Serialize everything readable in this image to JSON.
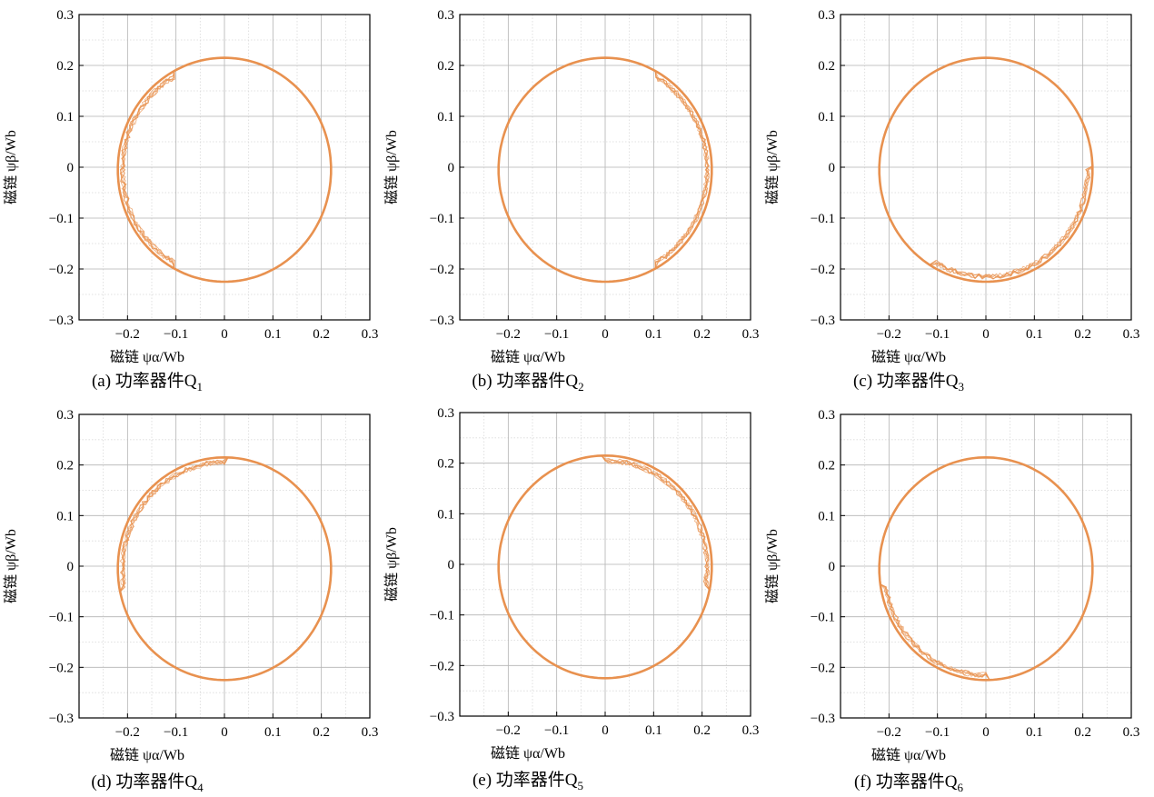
{
  "chart_data": [
    {
      "type": "line",
      "caption": "(a) 功率器件Q",
      "caption_sub": "1",
      "xlabel": "磁链 ψα/Wb",
      "ylabel": "磁链 ψβ/Wb",
      "xlim": [
        -0.3,
        0.3
      ],
      "ylim": [
        -0.3,
        0.3
      ],
      "xticks": [
        -0.2,
        -0.1,
        0,
        0.1,
        0.2,
        0.3
      ],
      "xtick_labels": [
        "−0.2",
        "−0.1",
        "0",
        "0.1",
        "0.2",
        "0.3"
      ],
      "yticks": [
        -0.3,
        -0.2,
        -0.1,
        0,
        0.1,
        0.2,
        0.3
      ],
      "ytick_labels": [
        "−0.3",
        "−0.2",
        "−0.1",
        "0",
        "0.1",
        "0.2",
        "0.3"
      ],
      "grid": true,
      "line_color": "#e8914f",
      "series": [
        {
          "shape": "flux-trajectory",
          "center": [
            0,
            -0.005
          ],
          "radius_x": 0.22,
          "radius_y": 0.22,
          "distorted_sector": "sector-Q1-left",
          "distortion_range_deg": [
            120,
            240
          ]
        }
      ]
    },
    {
      "type": "line",
      "caption": "(b) 功率器件Q",
      "caption_sub": "2",
      "xlabel": "磁链 ψα/Wb",
      "ylabel": "磁链 ψβ/Wb",
      "xlim": [
        -0.3,
        0.3
      ],
      "ylim": [
        -0.3,
        0.3
      ],
      "xticks": [
        -0.2,
        -0.1,
        0,
        0.1,
        0.2,
        0.3
      ],
      "xtick_labels": [
        "−0.2",
        "−0.1",
        "0",
        "0.1",
        "0.2",
        "0.3"
      ],
      "yticks": [
        -0.3,
        -0.2,
        -0.1,
        0,
        0.1,
        0.2,
        0.3
      ],
      "ytick_labels": [
        "−0.3",
        "−0.2",
        "−0.1",
        "0",
        "0.1",
        "0.2",
        "0.3"
      ],
      "grid": true,
      "line_color": "#e8914f",
      "series": [
        {
          "shape": "flux-trajectory",
          "center": [
            0,
            -0.005
          ],
          "radius_x": 0.22,
          "radius_y": 0.22,
          "distorted_sector": "sector-Q2-right",
          "distortion_range_deg": [
            -60,
            60
          ]
        }
      ]
    },
    {
      "type": "line",
      "caption": "(c) 功率器件Q",
      "caption_sub": "3",
      "xlabel": "磁链 ψα/Wb",
      "ylabel": "磁链 ψβ/Wb",
      "xlim": [
        -0.3,
        0.3
      ],
      "ylim": [
        -0.3,
        0.3
      ],
      "xticks": [
        -0.2,
        -0.1,
        0,
        0.1,
        0.2,
        0.3
      ],
      "xtick_labels": [
        "−0.2",
        "−0.1",
        "0",
        "0.1",
        "0.2",
        "0.3"
      ],
      "yticks": [
        -0.3,
        -0.2,
        -0.1,
        0,
        0.1,
        0.2,
        0.3
      ],
      "ytick_labels": [
        "−0.3",
        "−0.2",
        "−0.1",
        "0",
        "0.1",
        "0.2",
        "0.3"
      ],
      "grid": true,
      "line_color": "#e8914f",
      "series": [
        {
          "shape": "flux-trajectory",
          "center": [
            0,
            -0.005
          ],
          "radius_x": 0.22,
          "radius_y": 0.22,
          "distorted_sector": "sector-Q3-lower-right",
          "distortion_range_deg": [
            240,
            360
          ]
        }
      ]
    },
    {
      "type": "line",
      "caption": "(d) 功率器件Q",
      "caption_sub": "4",
      "xlabel": "磁链 ψα/Wb",
      "ylabel": "磁链 ψβ/Wb",
      "xlim": [
        -0.3,
        0.3
      ],
      "ylim": [
        -0.3,
        0.3
      ],
      "xticks": [
        -0.2,
        -0.1,
        0,
        0.1,
        0.2,
        0.3
      ],
      "xtick_labels": [
        "−0.2",
        "−0.1",
        "0",
        "0.1",
        "0.2",
        "0.3"
      ],
      "yticks": [
        -0.3,
        -0.2,
        -0.1,
        0,
        0.1,
        0.2,
        0.3
      ],
      "ytick_labels": [
        "−0.3",
        "−0.2",
        "−0.1",
        "0",
        "0.1",
        "0.2",
        "0.3"
      ],
      "grid": true,
      "line_color": "#e8914f",
      "series": [
        {
          "shape": "flux-trajectory",
          "center": [
            0,
            -0.005
          ],
          "radius_x": 0.22,
          "radius_y": 0.22,
          "distorted_sector": "sector-Q4-upper-left",
          "distortion_range_deg": [
            90,
            190
          ]
        }
      ]
    },
    {
      "type": "line",
      "caption": "(e) 功率器件Q",
      "caption_sub": "5",
      "xlabel": "磁链 ψα/Wb",
      "ylabel": "磁链 ψβ/Wb",
      "xlim": [
        -0.3,
        0.3
      ],
      "ylim": [
        -0.3,
        0.3
      ],
      "xticks": [
        -0.2,
        -0.1,
        0,
        0.1,
        0.2,
        0.3
      ],
      "xtick_labels": [
        "−0.2",
        "−0.1",
        "0",
        "0.1",
        "0.2",
        "0.3"
      ],
      "yticks": [
        -0.3,
        -0.2,
        -0.1,
        0,
        0.1,
        0.2,
        0.3
      ],
      "ytick_labels": [
        "−0.3",
        "−0.2",
        "−0.1",
        "0",
        "0.1",
        "0.2",
        "0.3"
      ],
      "grid": true,
      "line_color": "#e8914f",
      "series": [
        {
          "shape": "flux-trajectory",
          "center": [
            0,
            -0.005
          ],
          "radius_x": 0.22,
          "radius_y": 0.22,
          "distorted_sector": "sector-Q5-upper-right",
          "distortion_range_deg": [
            -10,
            90
          ]
        }
      ]
    },
    {
      "type": "line",
      "caption": "(f) 功率器件Q",
      "caption_sub": "6",
      "xlabel": "磁链 ψα/Wb",
      "ylabel": "磁链 ψβ/Wb",
      "xlim": [
        -0.3,
        0.3
      ],
      "ylim": [
        -0.3,
        0.3
      ],
      "xticks": [
        -0.2,
        -0.1,
        0,
        0.1,
        0.2,
        0.3
      ],
      "xtick_labels": [
        "−0.2",
        "−0.1",
        "0",
        "0.1",
        "0.2",
        "0.3"
      ],
      "yticks": [
        -0.3,
        -0.2,
        -0.1,
        0,
        0.1,
        0.2,
        0.3
      ],
      "ytick_labels": [
        "−0.3",
        "−0.2",
        "−0.1",
        "0",
        "0.1",
        "0.2",
        "0.3"
      ],
      "grid": true,
      "line_color": "#e8914f",
      "series": [
        {
          "shape": "flux-trajectory",
          "center": [
            0,
            -0.005
          ],
          "radius_x": 0.22,
          "radius_y": 0.22,
          "distorted_sector": "sector-Q6-lower-left",
          "distortion_range_deg": [
            190,
            270
          ]
        }
      ]
    }
  ]
}
